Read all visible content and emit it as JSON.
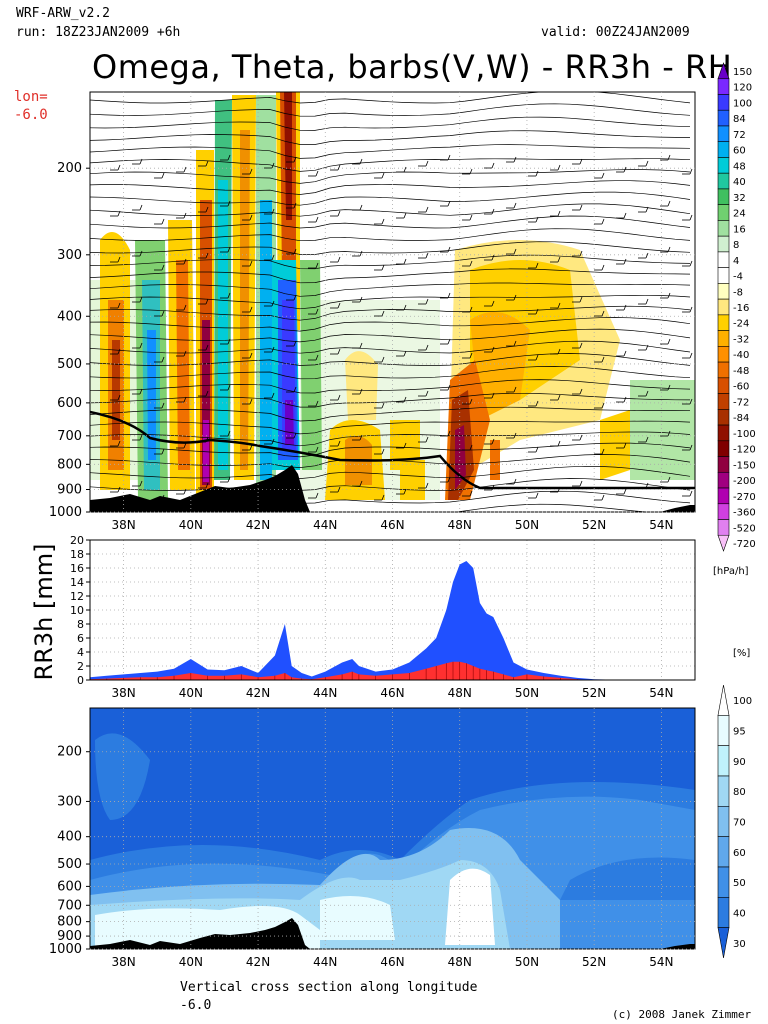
{
  "header": {
    "model": "WRF-ARW_v2.2",
    "run": "run: 18Z23JAN2009 +6h",
    "valid": "valid: 00Z24JAN2009",
    "title": "Omega, Theta, barbs(V,W) - RR3h - RH",
    "lon_label": "lon=",
    "lon_value": "-6.0"
  },
  "footer": {
    "caption_line1": "Vertical cross section along longitude",
    "caption_line2": "-6.0",
    "copyright": "(c) 2008 Janek Zimmer"
  },
  "axes": {
    "lat_ticks": [
      "38N",
      "40N",
      "42N",
      "44N",
      "46N",
      "48N",
      "50N",
      "52N",
      "54N"
    ],
    "lat_values": [
      38,
      40,
      42,
      44,
      46,
      48,
      50,
      52,
      54
    ],
    "lat_range": [
      37,
      55
    ],
    "pressure_ticks": [
      200,
      300,
      400,
      500,
      600,
      700,
      800,
      900,
      1000
    ],
    "pressure_range": [
      140,
      1000
    ]
  },
  "chart_data": [
    {
      "type": "heatmap",
      "title": "Omega, Theta, barbs(V,W)",
      "xlabel": "",
      "ylabel": "",
      "colorbar_unit": "[hPa/h]",
      "colorbar_levels": [
        "150",
        "120",
        "100",
        "84",
        "72",
        "60",
        "48",
        "40",
        "32",
        "24",
        "16",
        "8",
        "4",
        "-4",
        "-8",
        "-16",
        "-24",
        "-32",
        "-40",
        "-48",
        "-60",
        "-72",
        "-84",
        "-100",
        "-120",
        "-150",
        "-200",
        "-270",
        "-360",
        "-520",
        "-720"
      ],
      "colorbar_colors": [
        "#6a00c8",
        "#7a28ff",
        "#3a3aff",
        "#2060ff",
        "#1090ff",
        "#00b0f0",
        "#00ccd8",
        "#20c8a0",
        "#40c060",
        "#70d070",
        "#a0e0a0",
        "#d0f0d0",
        "#ffffff",
        "#ffffff",
        "#ffffc0",
        "#ffe880",
        "#ffd000",
        "#ffb000",
        "#ff9000",
        "#f07000",
        "#d85000",
        "#c04000",
        "#a83000",
        "#901000",
        "#800000",
        "#900040",
        "#a00080",
        "#b000b0",
        "#d040e0",
        "#e080f0",
        "#f8c0f8"
      ]
    },
    {
      "type": "bar",
      "title": "",
      "xlabel": "",
      "ylabel": "RR3h [mm]",
      "ylim": [
        0,
        20
      ],
      "y_ticks": [
        0,
        2,
        4,
        6,
        8,
        10,
        12,
        14,
        16,
        18,
        20
      ],
      "x": [
        37.0,
        37.5,
        38.0,
        38.5,
        39.0,
        39.5,
        40.0,
        40.5,
        41.0,
        41.5,
        42.0,
        42.5,
        42.8,
        43.0,
        43.3,
        43.6,
        44.0,
        44.5,
        44.8,
        45.0,
        45.5,
        46.0,
        46.5,
        47.0,
        47.3,
        47.6,
        47.8,
        48.0,
        48.2,
        48.4,
        48.6,
        48.8,
        49.0,
        49.3,
        49.6,
        50.0,
        50.5,
        51.0,
        51.5,
        52.0,
        53.0,
        54.0,
        55.0
      ],
      "series": [
        {
          "color": "#2050ff",
          "values": [
            0.4,
            0.6,
            0.8,
            1.0,
            1.2,
            1.6,
            3.0,
            1.5,
            1.4,
            2.0,
            1.0,
            3.5,
            8.0,
            2.0,
            1.0,
            0.5,
            1.2,
            2.5,
            3.0,
            2.0,
            1.2,
            1.5,
            2.5,
            4.5,
            6.0,
            10.0,
            14.0,
            16.5,
            17.0,
            16.0,
            11.0,
            9.5,
            9.0,
            6.0,
            2.5,
            1.5,
            1.0,
            0.6,
            0.3,
            0.1,
            0.0,
            0.0,
            0.0
          ]
        },
        {
          "color": "#ff3030",
          "values": [
            0.1,
            0.2,
            0.3,
            0.4,
            0.4,
            0.6,
            1.0,
            0.6,
            0.6,
            0.8,
            0.4,
            0.6,
            1.0,
            0.4,
            0.2,
            0.1,
            0.4,
            0.8,
            1.2,
            0.8,
            0.6,
            0.8,
            1.0,
            1.6,
            2.0,
            2.4,
            2.6,
            2.6,
            2.4,
            2.0,
            1.6,
            1.4,
            1.2,
            0.8,
            0.4,
            0.8,
            0.5,
            0.3,
            0.1,
            0.0,
            0.0,
            0.0,
            0.0
          ]
        }
      ]
    },
    {
      "type": "heatmap",
      "title": "RH",
      "xlabel": "",
      "ylabel": "",
      "colorbar_unit": "[%]",
      "colorbar_levels": [
        "100",
        "95",
        "90",
        "80",
        "70",
        "60",
        "50",
        "40",
        "30"
      ],
      "colorbar_colors": [
        "#ffffff",
        "#e8fcff",
        "#c0f2fc",
        "#a0d8f4",
        "#80c0f0",
        "#60a8ec",
        "#4090e8",
        "#2c7ce0",
        "#1a60d8"
      ]
    }
  ]
}
